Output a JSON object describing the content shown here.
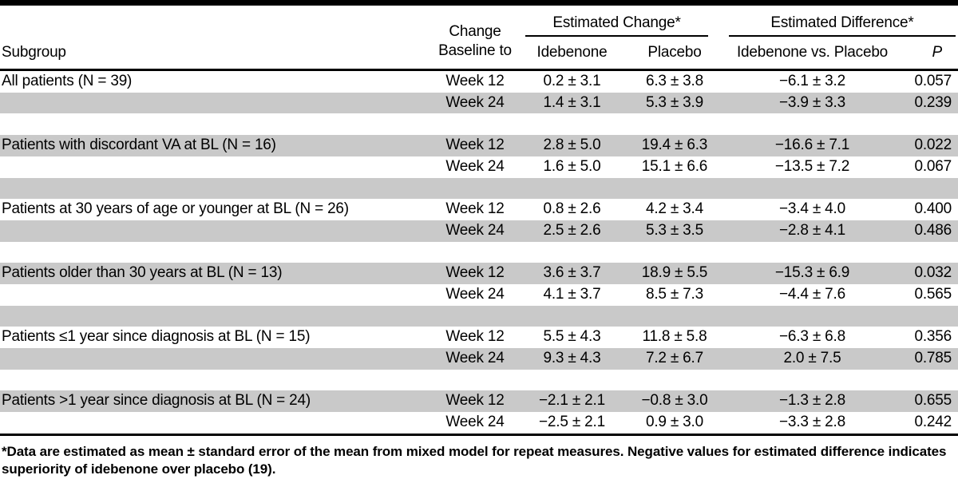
{
  "table": {
    "headers": {
      "subgroup": "Subgroup",
      "change_line1": "Change",
      "change_line2": "Baseline to",
      "estimated_change": "Estimated Change*",
      "estimated_difference": "Estimated Difference*",
      "idebenone": "Idebenone",
      "placebo": "Placebo",
      "idebenone_vs_placebo": "Idebenone vs. Placebo",
      "p": "P"
    },
    "groups": [
      {
        "subgroup": "All patients (N = 39)",
        "rows": [
          {
            "week": "Week 12",
            "idebenone": "0.2 ± 3.1",
            "placebo": "6.3 ± 3.8",
            "difference": "−6.1 ± 3.2",
            "p": "0.057"
          },
          {
            "week": "Week 24",
            "idebenone": "1.4 ± 3.1",
            "placebo": "5.3 ± 3.9",
            "difference": "−3.9 ± 3.3",
            "p": "0.239"
          }
        ]
      },
      {
        "subgroup": "Patients with discordant VA at BL (N = 16)",
        "rows": [
          {
            "week": "Week 12",
            "idebenone": "2.8 ± 5.0",
            "placebo": "19.4 ± 6.3",
            "difference": "−16.6 ± 7.1",
            "p": "0.022"
          },
          {
            "week": "Week 24",
            "idebenone": "1.6 ± 5.0",
            "placebo": "15.1 ± 6.6",
            "difference": "−13.5 ± 7.2",
            "p": "0.067"
          }
        ]
      },
      {
        "subgroup": "Patients at 30 years of age or younger at BL (N = 26)",
        "rows": [
          {
            "week": "Week 12",
            "idebenone": "0.8 ± 2.6",
            "placebo": "4.2 ± 3.4",
            "difference": "−3.4 ± 4.0",
            "p": "0.400"
          },
          {
            "week": "Week 24",
            "idebenone": "2.5 ± 2.6",
            "placebo": "5.3 ± 3.5",
            "difference": "−2.8 ± 4.1",
            "p": "0.486"
          }
        ]
      },
      {
        "subgroup": "Patients older than 30 years at BL (N = 13)",
        "rows": [
          {
            "week": "Week 12",
            "idebenone": "3.6 ± 3.7",
            "placebo": "18.9 ± 5.5",
            "difference": "−15.3 ± 6.9",
            "p": "0.032"
          },
          {
            "week": "Week 24",
            "idebenone": "4.1 ± 3.7",
            "placebo": "8.5 ± 7.3",
            "difference": "−4.4 ± 7.6",
            "p": "0.565"
          }
        ]
      },
      {
        "subgroup": "Patients ≤1 year since diagnosis at BL (N = 15)",
        "rows": [
          {
            "week": "Week 12",
            "idebenone": "5.5 ± 4.3",
            "placebo": "11.8 ± 5.8",
            "difference": "−6.3 ± 6.8",
            "p": "0.356"
          },
          {
            "week": "Week 24",
            "idebenone": "9.3 ± 4.3",
            "placebo": "7.2 ± 6.7",
            "difference": "2.0 ± 7.5",
            "p": "0.785"
          }
        ]
      },
      {
        "subgroup": "Patients >1 year since diagnosis at BL (N = 24)",
        "rows": [
          {
            "week": "Week 12",
            "idebenone": "−2.1 ± 2.1",
            "placebo": "−0.8 ± 3.0",
            "difference": "−1.3 ± 2.8",
            "p": "0.655"
          },
          {
            "week": "Week 24",
            "idebenone": "−2.5 ± 2.1",
            "placebo": "0.9 ± 3.0",
            "difference": "−3.3 ± 2.8",
            "p": "0.242"
          }
        ]
      }
    ],
    "footnote": "*Data are estimated as mean ± standard error of the mean from mixed model for repeat measures. Negative values for estimated difference indicates superiority of idebenone over placebo (19)."
  },
  "colors": {
    "stripe_gray": "#c9c9c9",
    "rule_black": "#000000"
  }
}
